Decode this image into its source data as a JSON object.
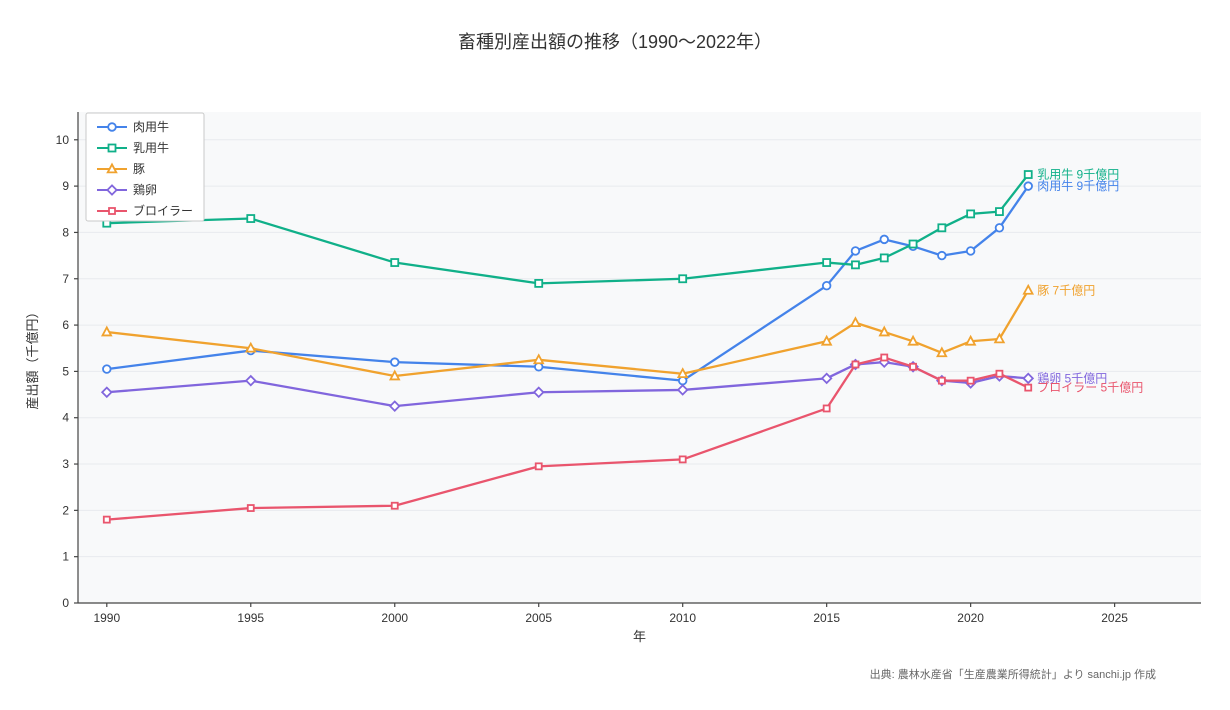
{
  "page": {
    "title": "畜種別産出額の推移（1990～2022年）",
    "source": "出典: 農林水産省「生産農業所得統計」より sanchi.jp 作成"
  },
  "chart_data": {
    "type": "line",
    "title": "畜種別産出額の推移（1990～2022年）",
    "xlabel": "年",
    "ylabel": "産出額（千億円）",
    "xlim": [
      1989,
      2028
    ],
    "ylim": [
      0,
      10.6
    ],
    "xticks": [
      1990,
      1995,
      2000,
      2005,
      2010,
      2015,
      2020,
      2025
    ],
    "yticks": [
      0,
      1,
      2,
      3,
      4,
      5,
      6,
      7,
      8,
      9,
      10
    ],
    "grid": true,
    "legend_position": "top-left",
    "colors": {
      "plot_bg": "#f8f9fa",
      "gridline": "#e8eaee",
      "axis": "#444444",
      "tick_text": "#333333"
    },
    "x": [
      1990,
      1995,
      2000,
      2005,
      2010,
      2015,
      2016,
      2017,
      2018,
      2019,
      2020,
      2021,
      2022
    ],
    "series": [
      {
        "name": "肉用牛",
        "color": "#4483ea",
        "marker": "circle",
        "values": [
          5.05,
          5.45,
          5.2,
          5.1,
          4.8,
          6.85,
          7.6,
          7.85,
          7.7,
          7.5,
          7.6,
          8.1,
          9.0
        ],
        "annotation": "肉用牛 9千億円"
      },
      {
        "name": "乳用牛",
        "color": "#10b089",
        "marker": "square",
        "values": [
          8.2,
          8.3,
          7.35,
          6.9,
          7.0,
          7.35,
          7.3,
          7.45,
          7.75,
          8.1,
          8.4,
          8.45,
          9.25
        ],
        "annotation": "乳用牛 9千億円"
      },
      {
        "name": "豚",
        "color": "#f0a22e",
        "marker": "triangle",
        "values": [
          5.85,
          5.5,
          4.9,
          5.25,
          4.95,
          5.65,
          6.05,
          5.85,
          5.65,
          5.4,
          5.65,
          5.7,
          6.75
        ],
        "annotation": "豚 7千億円"
      },
      {
        "name": "鶏卵",
        "color": "#8166dd",
        "marker": "diamond",
        "values": [
          4.55,
          4.8,
          4.25,
          4.55,
          4.6,
          4.85,
          5.15,
          5.2,
          5.1,
          4.8,
          4.75,
          4.9,
          4.85
        ],
        "annotation": "鶏卵 5千億円"
      },
      {
        "name": "ブロイラー",
        "color": "#e9556d",
        "marker": "square-small",
        "values": [
          1.8,
          2.05,
          2.1,
          2.95,
          3.1,
          4.2,
          5.15,
          5.3,
          5.1,
          4.8,
          4.8,
          4.95,
          4.65
        ],
        "annotation": "ブロイラー 5千億円"
      }
    ]
  }
}
